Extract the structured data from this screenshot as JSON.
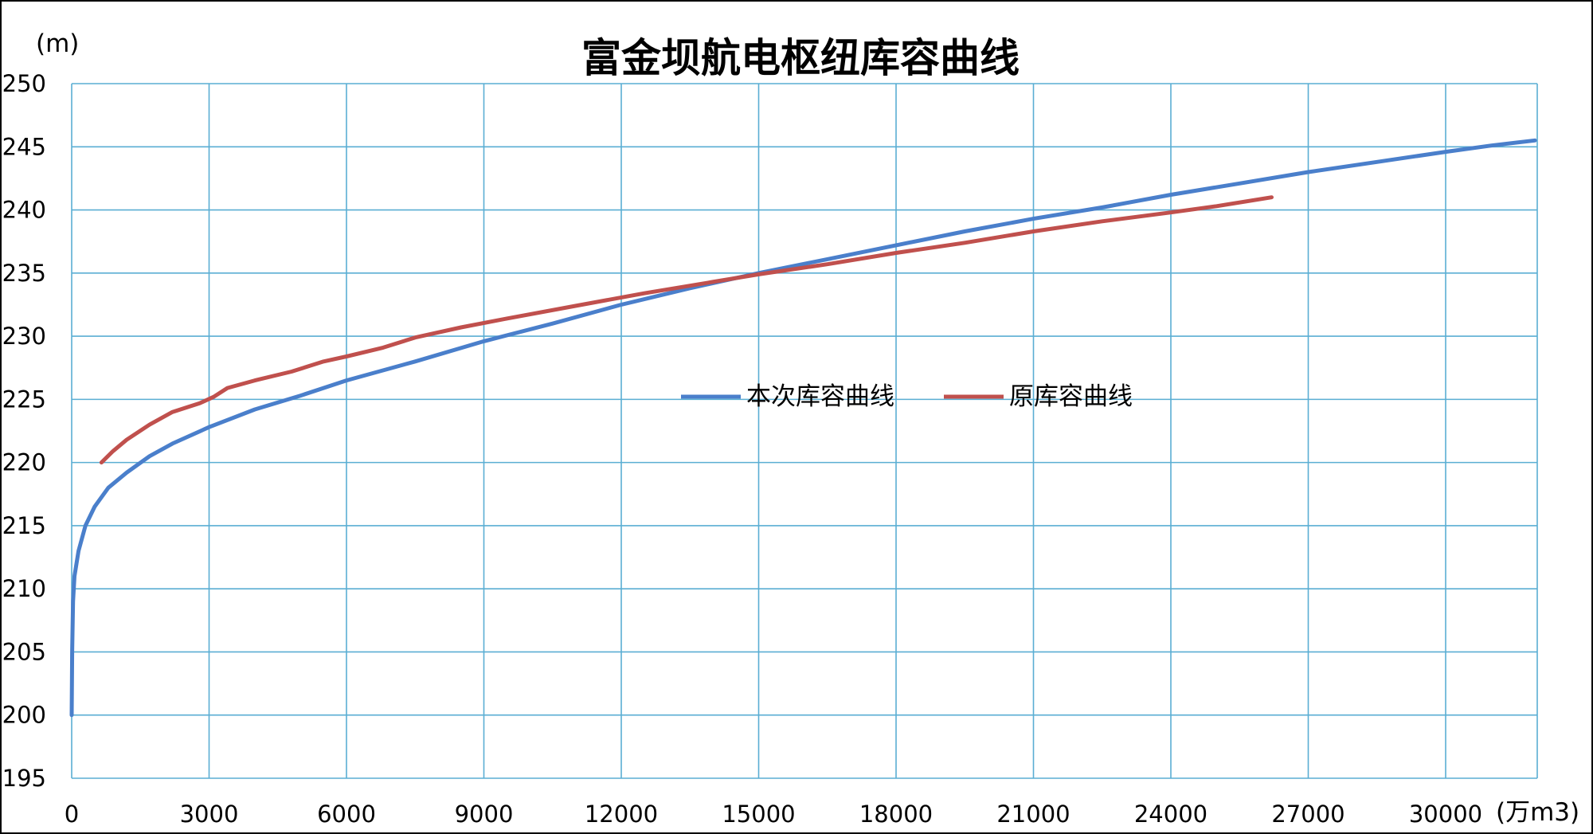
{
  "chart_data": {
    "type": "line",
    "title": "富金坝航电枢纽库容曲线",
    "ylabel": "(m)",
    "xlabel": "(万m3)",
    "xlim": [
      0,
      32000
    ],
    "ylim": [
      195,
      250
    ],
    "xticks": [
      "0",
      "3000",
      "6000",
      "9000",
      "12000",
      "15000",
      "18000",
      "21000",
      "24000",
      "27000",
      "30000"
    ],
    "xtick_values": [
      0,
      3000,
      6000,
      9000,
      12000,
      15000,
      18000,
      21000,
      24000,
      27000,
      30000
    ],
    "yticks": [
      "195",
      "200",
      "205",
      "210",
      "215",
      "220",
      "225",
      "230",
      "235",
      "240",
      "245",
      "250"
    ],
    "ytick_values": [
      195,
      200,
      205,
      210,
      215,
      220,
      225,
      230,
      235,
      240,
      245,
      250
    ],
    "grid": true,
    "legend_position": "center",
    "series": [
      {
        "name": "本次库容曲线",
        "color": "#4a7fcb",
        "points": [
          [
            0,
            200
          ],
          [
            10,
            205
          ],
          [
            30,
            209
          ],
          [
            60,
            211
          ],
          [
            150,
            213
          ],
          [
            300,
            215
          ],
          [
            500,
            216.5
          ],
          [
            800,
            218
          ],
          [
            1200,
            219.2
          ],
          [
            1700,
            220.5
          ],
          [
            2200,
            221.5
          ],
          [
            3000,
            222.8
          ],
          [
            4000,
            224.2
          ],
          [
            5000,
            225.3
          ],
          [
            6000,
            226.5
          ],
          [
            7500,
            228
          ],
          [
            9000,
            229.6
          ],
          [
            10500,
            231
          ],
          [
            12000,
            232.5
          ],
          [
            13500,
            233.8
          ],
          [
            15000,
            235
          ],
          [
            16500,
            236.1
          ],
          [
            18000,
            237.2
          ],
          [
            19500,
            238.3
          ],
          [
            21000,
            239.3
          ],
          [
            22500,
            240.2
          ],
          [
            24000,
            241.2
          ],
          [
            25500,
            242.1
          ],
          [
            27000,
            243
          ],
          [
            28500,
            243.8
          ],
          [
            30000,
            244.6
          ],
          [
            31000,
            245.1
          ],
          [
            31950,
            245.5
          ]
        ]
      },
      {
        "name": "原库容曲线",
        "color": "#c0504d",
        "points": [
          [
            650,
            220
          ],
          [
            900,
            220.9
          ],
          [
            1200,
            221.8
          ],
          [
            1700,
            223
          ],
          [
            2200,
            224
          ],
          [
            2800,
            224.7
          ],
          [
            3100,
            225.2
          ],
          [
            3400,
            225.9
          ],
          [
            4000,
            226.5
          ],
          [
            4800,
            227.2
          ],
          [
            5500,
            228
          ],
          [
            6000,
            228.4
          ],
          [
            6800,
            229.1
          ],
          [
            7500,
            229.9
          ],
          [
            8500,
            230.7
          ],
          [
            9500,
            231.4
          ],
          [
            11000,
            232.4
          ],
          [
            12500,
            233.4
          ],
          [
            14000,
            234.3
          ],
          [
            15000,
            234.9
          ],
          [
            16500,
            235.7
          ],
          [
            18000,
            236.6
          ],
          [
            19500,
            237.4
          ],
          [
            21000,
            238.3
          ],
          [
            22500,
            239.1
          ],
          [
            24000,
            239.8
          ],
          [
            25000,
            240.3
          ],
          [
            26200,
            241
          ]
        ]
      }
    ]
  }
}
